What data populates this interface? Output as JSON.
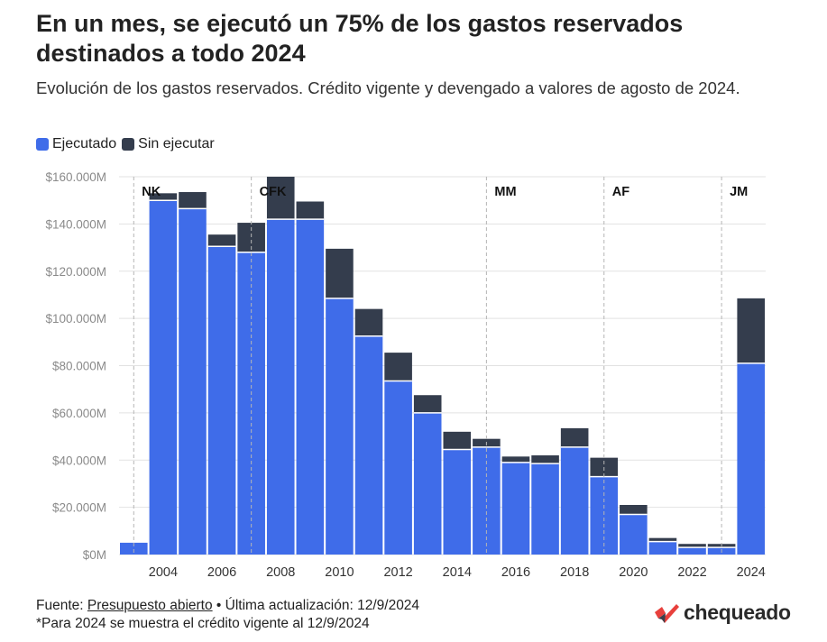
{
  "header": {
    "title": "En un mes, se ejecutó un 75% de los gastos reservados destinados a todo 2024",
    "subtitle": "Evolución de los gastos reservados. Crédito vigente y devengado a valores de agosto de 2024."
  },
  "colors": {
    "ejecutado": "#3f6ce9",
    "sin_ejecutar": "#343d4d",
    "grid": "#e2e2e2",
    "dash": "#b5b5b5"
  },
  "legend": [
    {
      "label": "Ejecutado",
      "color": "#3f6ce9"
    },
    {
      "label": "Sin ejecutar",
      "color": "#343d4d"
    }
  ],
  "chart_data": {
    "type": "bar",
    "stacked": true,
    "categories": [
      2003,
      2004,
      2005,
      2006,
      2007,
      2008,
      2009,
      2010,
      2011,
      2012,
      2013,
      2014,
      2015,
      2016,
      2017,
      2018,
      2019,
      2020,
      2021,
      2022,
      2023,
      2024
    ],
    "x_tick_labels": [
      "2004",
      "2006",
      "2008",
      "2010",
      "2012",
      "2014",
      "2016",
      "2018",
      "2020",
      "2022",
      "2024"
    ],
    "series": [
      {
        "name": "Ejecutado",
        "values": [
          5000,
          150000,
          146500,
          130500,
          128000,
          142000,
          142000,
          108500,
          92500,
          73500,
          60000,
          44500,
          45500,
          39000,
          38500,
          45500,
          33000,
          17000,
          5500,
          3000,
          3000,
          81000
        ]
      },
      {
        "name": "Sin ejecutar",
        "values": [
          0,
          3000,
          7000,
          5000,
          12500,
          18000,
          7500,
          21000,
          11500,
          12000,
          7500,
          7500,
          3500,
          2500,
          3500,
          8000,
          8000,
          4000,
          1500,
          1500,
          1500,
          27500
        ]
      }
    ],
    "ylim": [
      0,
      160000
    ],
    "y_ticks": [
      0,
      20000,
      40000,
      60000,
      80000,
      100000,
      120000,
      140000,
      160000
    ],
    "y_tick_labels": [
      "$0M",
      "$20.000M",
      "$40.000M",
      "$60.000M",
      "$80.000M",
      "$100.000M",
      "$120.000M",
      "$140.000M",
      "$160.000M"
    ],
    "grid": true,
    "legend_position": "top-left",
    "annotations": [
      {
        "label": "NK",
        "x": 2003.5
      },
      {
        "label": "CFK",
        "x": 2007.5
      },
      {
        "label": "MM",
        "x": 2015.5
      },
      {
        "label": "AF",
        "x": 2019.5
      },
      {
        "label": "JM",
        "x": 2023.5
      }
    ]
  },
  "footer": {
    "source_prefix": "Fuente: ",
    "source_link": "Presupuesto abierto",
    "source_suffix": " • Última actualización: 12/9/2024",
    "note": "*Para 2024 se muestra el crédito vigente al 12/9/2024"
  },
  "brand": {
    "name": "chequeado",
    "logo_colors": [
      "#e8403c",
      "#3b3f4a"
    ]
  }
}
